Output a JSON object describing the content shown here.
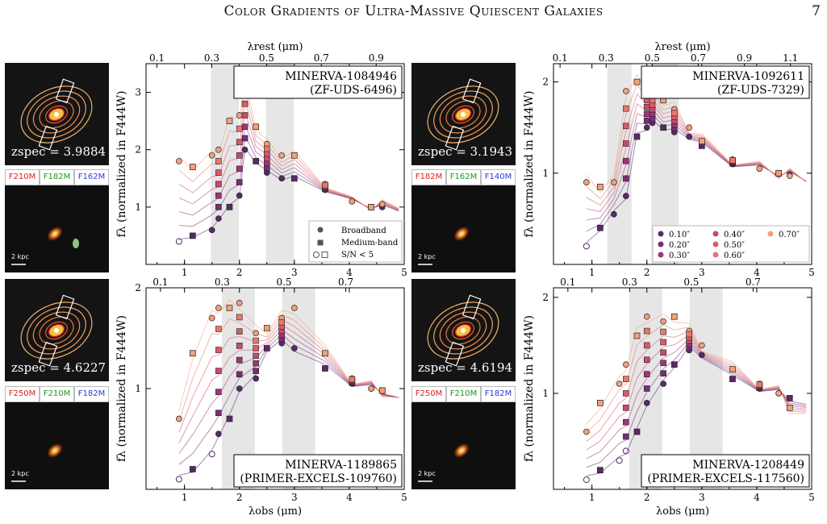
{
  "header": {
    "title": "Color Gradients of Ultra-Massive Quiescent Galaxies",
    "page_number": "7"
  },
  "panels": [
    {
      "name": "MINERVA-1084946",
      "alt": "(ZF-UDS-6496)",
      "z": "3.9884",
      "filters": [
        "F210M",
        "F182M",
        "F162M"
      ],
      "xticks": [
        "1",
        "2",
        "3",
        "4",
        "5"
      ],
      "yticks": [
        "1",
        "2",
        "3"
      ],
      "ymax": 3.5,
      "ymin": 0.0,
      "rest_ticks": [
        "0.1",
        "0.3",
        "0.5",
        "0.7",
        "0.9"
      ],
      "ylabel": "fλ (normalized in F444W)",
      "box_pos": "top-right",
      "show_xlabel": false,
      "show_toplabel": true,
      "legend": "markers",
      "shade": [
        [
          1.48,
          1.99
        ],
        [
          2.48,
          2.99
        ]
      ],
      "scale_text": "2 kpc"
    },
    {
      "name": "MINERVA-1092611",
      "alt": "(ZF-UDS-7329)",
      "z": "3.1943",
      "filters": [
        "F182M",
        "F162M",
        "F140M"
      ],
      "xticks": [
        "1",
        "2",
        "3",
        "4",
        "5"
      ],
      "yticks": [
        "1",
        "2"
      ],
      "ymax": 2.2,
      "ymin": 0.0,
      "rest_ticks": [
        "0.1",
        "0.3",
        "0.5",
        "0.7",
        "0.9",
        "1.1"
      ],
      "ylabel": "fλ (normalized in F444W)",
      "box_pos": "top-right",
      "show_xlabel": false,
      "show_toplabel": true,
      "legend": "radii",
      "shade": [
        [
          1.28,
          1.72
        ],
        [
          2.08,
          2.58
        ]
      ],
      "scale_text": "2 kpc"
    },
    {
      "name": "MINERVA-1189865",
      "alt": "(PRIMER-EXCELS-109760)",
      "z": "4.6227",
      "filters": [
        "F250M",
        "F210M",
        "F182M"
      ],
      "xticks": [
        "1",
        "2",
        "3",
        "4",
        "5"
      ],
      "yticks": [
        "1",
        "2"
      ],
      "ymax": 2.0,
      "ymin": 0.0,
      "rest_ticks": [
        "0.1",
        "0.3",
        "0.5",
        "0.7"
      ],
      "ylabel": "fλ (normalized in F444W)",
      "box_pos": "bottom-right",
      "show_xlabel": true,
      "show_toplabel": false,
      "legend": "none",
      "shade": [
        [
          1.68,
          2.28
        ],
        [
          2.78,
          3.38
        ]
      ],
      "scale_text": "2 kpc"
    },
    {
      "name": "MINERVA-1208449",
      "alt": "(PRIMER-EXCELS-117560)",
      "z": "4.6194",
      "filters": [
        "F250M",
        "F210M",
        "F182M"
      ],
      "xticks": [
        "1",
        "2",
        "3",
        "4",
        "5"
      ],
      "yticks": [
        "1",
        "2"
      ],
      "ymax": 2.1,
      "ymin": 0.0,
      "rest_ticks": [
        "0.1",
        "0.3",
        "0.5",
        "0.7"
      ],
      "ylabel": "fλ (normalized in F444W)",
      "box_pos": "bottom-right",
      "show_xlabel": true,
      "show_toplabel": false,
      "legend": "none",
      "shade": [
        [
          1.68,
          2.28
        ],
        [
          2.78,
          3.38
        ]
      ],
      "scale_text": "2 kpc"
    }
  ],
  "axis_text": {
    "xlabel": "λobs (μm)",
    "toplabel": "λrest (μm)",
    "zprefix": "zspec = "
  },
  "legend_markers": [
    "Broadband",
    "Medium-band",
    "S/N < 5"
  ],
  "legend_radii": [
    "0.10″",
    "0.20″",
    "0.30″",
    "0.40″",
    "0.50″",
    "0.60″",
    "0.70″"
  ],
  "colors": {
    "r010": "#5a2a68",
    "r020": "#7a2d76",
    "r030": "#a03478",
    "r040": "#c84a6e",
    "r050": "#db5a6a",
    "r060": "#e8786a",
    "r070": "#f0a07a",
    "shade": "#e6e6e6"
  },
  "chart_data": [
    {
      "type": "scatter",
      "title": "MINERVA-1084946",
      "x": [
        0.9,
        1.15,
        1.5,
        1.62,
        1.82,
        2.0,
        2.1,
        2.3,
        2.5,
        2.77,
        3.0,
        3.56,
        4.05,
        4.4,
        4.6
      ],
      "ylabel": "fλ (normalized in F444W)",
      "xlabel": "",
      "ylim": [
        0,
        3.5
      ],
      "series": [
        {
          "name": "0.10″",
          "values": [
            0.4,
            0.5,
            0.6,
            0.8,
            1.0,
            1.2,
            2.0,
            1.8,
            1.6,
            1.5,
            1.5,
            1.3,
            1.1,
            1.0,
            1.0
          ]
        },
        {
          "name": "0.70″",
          "values": [
            1.8,
            1.7,
            1.9,
            2.0,
            2.5,
            2.6,
            3.2,
            2.4,
            2.1,
            1.9,
            1.9,
            1.4,
            1.1,
            1.0,
            1.05
          ]
        }
      ]
    },
    {
      "type": "scatter",
      "title": "MINERVA-1092611",
      "x": [
        0.9,
        1.15,
        1.4,
        1.62,
        1.82,
        2.0,
        2.1,
        2.3,
        2.5,
        2.77,
        3.0,
        3.56,
        4.05,
        4.4,
        4.6
      ],
      "ylabel": "fλ (normalized in F444W)",
      "xlabel": "",
      "ylim": [
        0,
        2.2
      ],
      "series": [
        {
          "name": "0.10″",
          "values": [
            0.2,
            0.4,
            0.55,
            0.75,
            1.4,
            1.5,
            1.55,
            1.5,
            1.45,
            1.4,
            1.3,
            1.1,
            1.05,
            1.0,
            0.98
          ]
        },
        {
          "name": "0.70″",
          "values": [
            0.9,
            0.85,
            0.9,
            1.9,
            2.0,
            1.95,
            1.85,
            1.8,
            1.7,
            1.5,
            1.35,
            1.15,
            1.05,
            1.0,
            0.97
          ]
        }
      ]
    },
    {
      "type": "scatter",
      "title": "MINERVA-1189865",
      "x": [
        0.9,
        1.15,
        1.5,
        1.62,
        1.82,
        2.0,
        2.3,
        2.5,
        2.77,
        3.0,
        3.56,
        4.05,
        4.4,
        4.6
      ],
      "xlabel": "λobs (μm)",
      "ylabel": "fλ (normalized in F444W)",
      "ylim": [
        0,
        2
      ],
      "series": [
        {
          "name": "0.10″",
          "values": [
            0.1,
            0.2,
            0.35,
            0.55,
            0.7,
            1.0,
            1.1,
            1.4,
            1.45,
            1.4,
            1.2,
            1.05,
            1.0,
            0.98
          ]
        },
        {
          "name": "0.70″",
          "values": [
            0.7,
            1.35,
            1.7,
            1.8,
            1.8,
            1.85,
            1.55,
            1.6,
            1.7,
            1.8,
            1.35,
            1.1,
            1.0,
            0.98
          ]
        }
      ]
    },
    {
      "type": "scatter",
      "title": "MINERVA-1208449",
      "x": [
        0.9,
        1.15,
        1.5,
        1.62,
        1.82,
        2.0,
        2.3,
        2.5,
        2.77,
        3.0,
        3.56,
        4.05,
        4.4,
        4.6
      ],
      "xlabel": "λobs (μm)",
      "ylabel": "fλ (normalized in F444W)",
      "ylim": [
        0,
        2.1
      ],
      "series": [
        {
          "name": "0.10″",
          "values": [
            0.1,
            0.2,
            0.3,
            0.4,
            0.6,
            0.9,
            1.1,
            1.3,
            1.45,
            1.4,
            1.15,
            1.05,
            1.0,
            0.95
          ]
        },
        {
          "name": "0.70″",
          "values": [
            0.6,
            0.9,
            1.1,
            1.3,
            1.6,
            1.8,
            1.75,
            1.8,
            1.65,
            1.5,
            1.25,
            1.1,
            1.0,
            0.85
          ]
        }
      ]
    }
  ]
}
